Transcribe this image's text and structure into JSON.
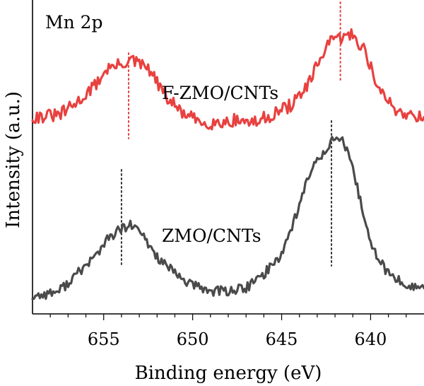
{
  "chart_data": {
    "type": "line",
    "title": "",
    "panel_label": "Mn 2p",
    "xlabel": "Binding energy (eV)",
    "ylabel": "Intensity (a.u.)",
    "xlim": [
      659,
      637
    ],
    "x_reversed": true,
    "xticks": [
      655,
      650,
      645,
      640
    ],
    "xtick_labels": [
      "655",
      "650",
      "645",
      "640"
    ],
    "ylim": [
      0,
      10
    ],
    "y_ticks_visible": false,
    "grid": false,
    "series": [
      {
        "name": "F-ZMO/CNTs",
        "color": "#e8413f",
        "points": [
          [
            659,
            6.27
          ],
          [
            657.5,
            6.33
          ],
          [
            656.5,
            6.73
          ],
          [
            655.5,
            7.27
          ],
          [
            654.8,
            7.82
          ],
          [
            654.2,
            7.91
          ],
          [
            653.5,
            8.09
          ],
          [
            652.5,
            7.82
          ],
          [
            651.5,
            6.91
          ],
          [
            650.5,
            6.36
          ],
          [
            649.5,
            6.09
          ],
          [
            648.5,
            6.09
          ],
          [
            647.5,
            6.18
          ],
          [
            646.5,
            6.09
          ],
          [
            645.5,
            6.36
          ],
          [
            644.5,
            6.64
          ],
          [
            643.5,
            7.27
          ],
          [
            643.0,
            7.91
          ],
          [
            642.5,
            8.55
          ],
          [
            642.0,
            8.73
          ],
          [
            641.5,
            8.82
          ],
          [
            641.0,
            8.91
          ],
          [
            640.3,
            8.36
          ],
          [
            639.5,
            7.09
          ],
          [
            638.5,
            6.45
          ],
          [
            637.0,
            6.27
          ]
        ],
        "annotation": "F-ZMO/CNTs",
        "peak_markers": [
          653.6,
          641.7
        ]
      },
      {
        "name": "ZMO/CNTs",
        "color": "#4a4a4a",
        "points": [
          [
            659,
            0.55
          ],
          [
            657.5,
            0.73
          ],
          [
            656.5,
            1.27
          ],
          [
            655.5,
            1.82
          ],
          [
            654.8,
            2.36
          ],
          [
            654.2,
            2.64
          ],
          [
            653.5,
            2.82
          ],
          [
            653.0,
            2.64
          ],
          [
            652.0,
            1.82
          ],
          [
            651.0,
            1.27
          ],
          [
            650.0,
            0.91
          ],
          [
            649.0,
            0.73
          ],
          [
            648.0,
            0.73
          ],
          [
            647.0,
            0.82
          ],
          [
            646.0,
            1.27
          ],
          [
            645.0,
            1.91
          ],
          [
            644.0,
            3.45
          ],
          [
            643.5,
            4.36
          ],
          [
            643.0,
            4.91
          ],
          [
            642.5,
            5.27
          ],
          [
            642.0,
            5.64
          ],
          [
            641.5,
            5.45
          ],
          [
            641.0,
            4.55
          ],
          [
            640.5,
            3.45
          ],
          [
            640.0,
            2.18
          ],
          [
            639.0,
            1.27
          ],
          [
            638.0,
            0.91
          ],
          [
            637.0,
            0.82
          ]
        ],
        "annotation": "ZMO/CNTs",
        "peak_markers": [
          654.0,
          642.2
        ]
      }
    ]
  }
}
